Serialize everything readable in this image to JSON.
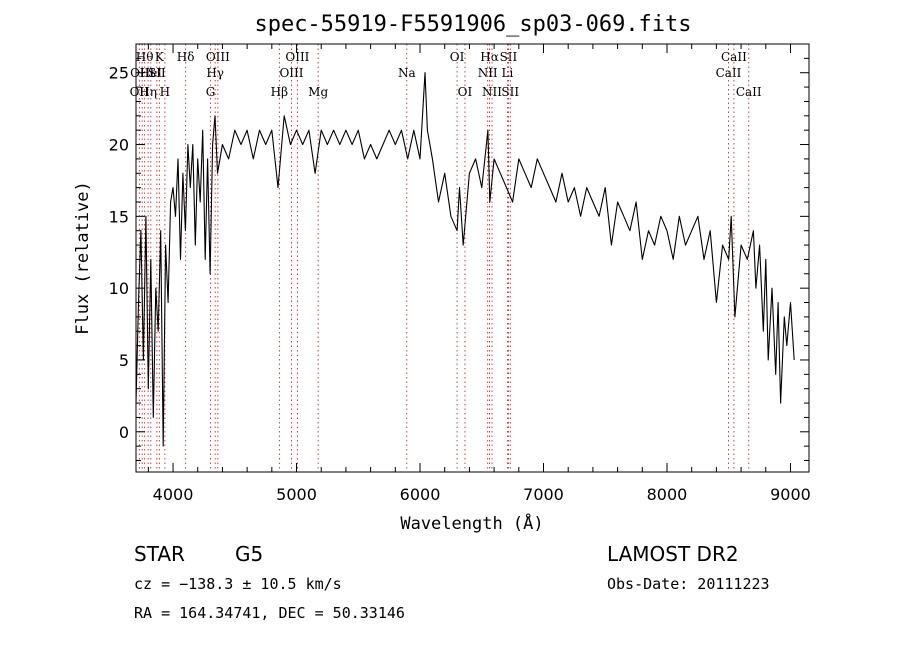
{
  "chart_data": {
    "type": "line",
    "title": "spec-55919-F5591906_sp03-069.fits",
    "xlabel": "Wavelength (Å)",
    "ylabel": "Flux (relative)",
    "xlim": [
      3700,
      9150
    ],
    "ylim": [
      -2.8,
      27
    ],
    "xticks": [
      4000,
      5000,
      6000,
      7000,
      8000,
      9000
    ],
    "yticks": [
      0,
      5,
      10,
      15,
      20,
      25
    ],
    "grid": false,
    "series": [
      {
        "x": [
          3700,
          3720,
          3740,
          3760,
          3780,
          3800,
          3820,
          3840,
          3860,
          3880,
          3900,
          3920,
          3940,
          3960,
          3980,
          4000,
          4020,
          4040,
          4060,
          4080,
          4100,
          4120,
          4140,
          4160,
          4180,
          4200,
          4220,
          4240,
          4260,
          4280,
          4300,
          4320,
          4340,
          4360,
          4380,
          4400,
          4450,
          4500,
          4550,
          4600,
          4650,
          4700,
          4750,
          4800,
          4850,
          4900,
          4950,
          5000,
          5050,
          5100,
          5150,
          5200,
          5250,
          5300,
          5350,
          5400,
          5450,
          5500,
          5550,
          5600,
          5650,
          5700,
          5750,
          5800,
          5850,
          5900,
          5950,
          6000,
          6020,
          6040,
          6060,
          6080,
          6100,
          6150,
          6200,
          6250,
          6300,
          6320,
          6350,
          6400,
          6450,
          6500,
          6550,
          6565,
          6600,
          6650,
          6700,
          6750,
          6800,
          6850,
          6900,
          6950,
          7000,
          7050,
          7100,
          7150,
          7200,
          7250,
          7300,
          7350,
          7400,
          7450,
          7500,
          7550,
          7600,
          7650,
          7700,
          7750,
          7800,
          7850,
          7900,
          7950,
          8000,
          8050,
          8100,
          8150,
          8200,
          8250,
          8300,
          8350,
          8400,
          8450,
          8500,
          8520,
          8550,
          8600,
          8650,
          8700,
          8720,
          8750,
          8780,
          8800,
          8820,
          8850,
          8880,
          8900,
          8920,
          8950,
          8970,
          9000,
          9030
        ],
        "y": [
          2,
          9,
          14,
          5,
          15,
          3,
          12,
          1,
          10,
          7,
          14,
          -1,
          13,
          9,
          16,
          17,
          15,
          19,
          12,
          18,
          14,
          20,
          17,
          20,
          13,
          19,
          16,
          21,
          12,
          19,
          11,
          20,
          22,
          18,
          19,
          20,
          19,
          21,
          20,
          21,
          19,
          21,
          20,
          21,
          17,
          22,
          20,
          21,
          20,
          21,
          18,
          21,
          20,
          21,
          20,
          21,
          20,
          21,
          19,
          20,
          19,
          20,
          21,
          20,
          21,
          19,
          21,
          19,
          22,
          25,
          21,
          20,
          19,
          16,
          18,
          15,
          14,
          17,
          13,
          18,
          19,
          17,
          21,
          16,
          19,
          18,
          17,
          16,
          19,
          18,
          17,
          19,
          18,
          17,
          16,
          18,
          16,
          17,
          15,
          17,
          16,
          15,
          17,
          13,
          16,
          15,
          14,
          16,
          12,
          14,
          13,
          15,
          14,
          12,
          15,
          13,
          14,
          15,
          12,
          14,
          9,
          13,
          12,
          15,
          8,
          13,
          12,
          14,
          10,
          13,
          7,
          12,
          5,
          10,
          4,
          9,
          2,
          8,
          6,
          9,
          5
        ]
      }
    ],
    "line_markers": [
      {
        "x": 3727,
        "label": "OII",
        "row": 3
      },
      {
        "x": 3750,
        "label": "OIII",
        "row": 2
      },
      {
        "x": 3770,
        "label": "Hθ",
        "row": 1
      },
      {
        "x": 3798,
        "label": "Hη",
        "row": 3
      },
      {
        "x": 3820,
        "label": "HeI",
        "row": 2
      },
      {
        "x": 3869,
        "label": "SII",
        "row": 2
      },
      {
        "x": 3889,
        "label": "K",
        "row": 1
      },
      {
        "x": 3934,
        "label": "H",
        "row": 3
      },
      {
        "x": 4102,
        "label": "Hδ",
        "row": 1
      },
      {
        "x": 4304,
        "label": "G",
        "row": 3
      },
      {
        "x": 4341,
        "label": "Hγ",
        "row": 2
      },
      {
        "x": 4363,
        "label": "OIII",
        "row": 1
      },
      {
        "x": 4861,
        "label": "Hβ",
        "row": 3
      },
      {
        "x": 4959,
        "label": "OIII",
        "row": 2
      },
      {
        "x": 5007,
        "label": "OIII",
        "row": 1
      },
      {
        "x": 5175,
        "label": "Mg",
        "row": 3
      },
      {
        "x": 5893,
        "label": "Na",
        "row": 2
      },
      {
        "x": 6300,
        "label": "OI",
        "row": 1
      },
      {
        "x": 6364,
        "label": "OI",
        "row": 3
      },
      {
        "x": 6548,
        "label": "NII",
        "row": 2
      },
      {
        "x": 6563,
        "label": "Hα",
        "row": 1
      },
      {
        "x": 6583,
        "label": "NII",
        "row": 3
      },
      {
        "x": 6708,
        "label": "Li",
        "row": 2
      },
      {
        "x": 6716,
        "label": "SII",
        "row": 1
      },
      {
        "x": 6731,
        "label": "SII",
        "row": 3
      },
      {
        "x": 8498,
        "label": "CaII",
        "row": 2
      },
      {
        "x": 8542,
        "label": "CaII",
        "row": 1
      },
      {
        "x": 8662,
        "label": "CaII",
        "row": 3
      }
    ]
  },
  "info": {
    "class": "STAR",
    "subclass": "G5",
    "cz": "cz = −138.3 ± 10.5 km/s",
    "radec": "RA = 164.34741, DEC =  50.33146",
    "survey": "LAMOST DR2",
    "obs_date": "Obs-Date: 20111223"
  }
}
